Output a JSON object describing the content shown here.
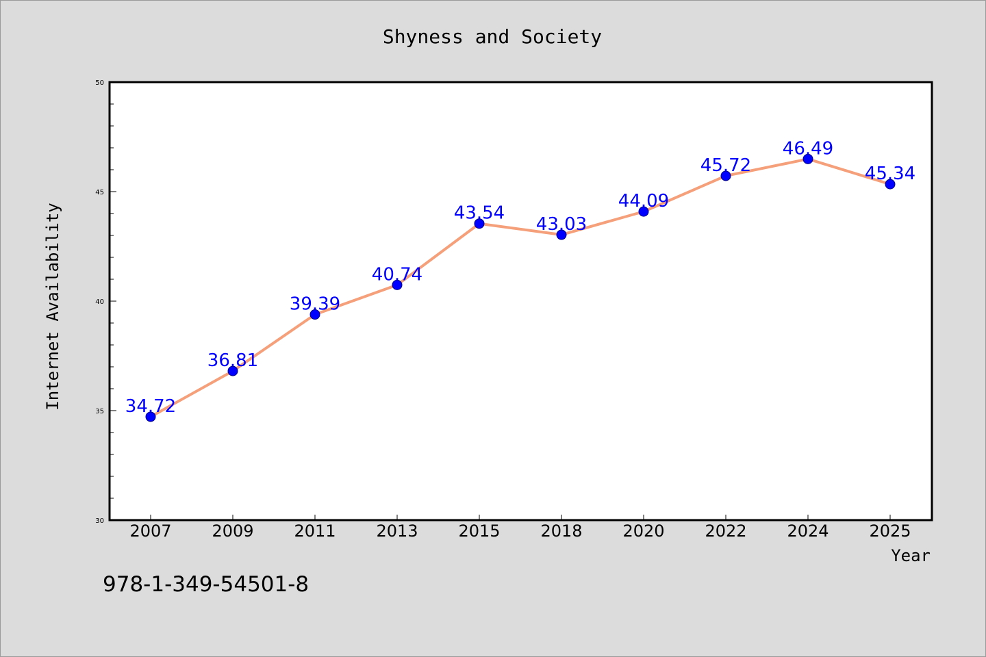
{
  "chart_data": {
    "type": "line",
    "title": "Shyness and Society",
    "xlabel": "Year",
    "ylabel": "Internet Availability",
    "categories": [
      "2007",
      "2009",
      "2011",
      "2013",
      "2015",
      "2018",
      "2020",
      "2022",
      "2024",
      "2025"
    ],
    "series": [
      {
        "values": [
          34.72,
          36.81,
          39.39,
          40.74,
          43.54,
          43.03,
          44.09,
          45.72,
          46.49,
          45.34
        ],
        "labels": [
          "34.72",
          "36.81",
          "39.39",
          "40.74",
          "43.54",
          "43.03",
          "44.09",
          "45.72",
          "46.49",
          "45.34"
        ],
        "line_color": "#f5a07a",
        "marker_color": "#0000ff"
      }
    ],
    "ylim": [
      30,
      50
    ],
    "yticks": [
      "30",
      "35",
      "40",
      "45",
      "50"
    ],
    "grid": false,
    "legend": "none"
  },
  "annotation": {
    "isbn": "978-1-349-54501-8"
  },
  "colors": {
    "background": "#dcdcdc",
    "plot_background": "#ffffff",
    "line": "#f5a07a",
    "marker": "#0000ff",
    "data_label": "#0000ff"
  }
}
